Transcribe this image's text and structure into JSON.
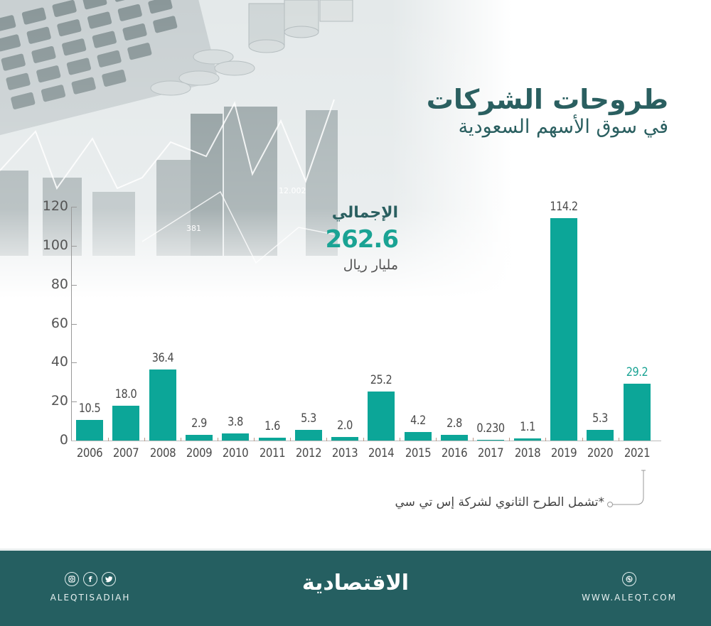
{
  "title": {
    "main": "طروحات الشركات",
    "sub": "في سوق الأسهم السعودية"
  },
  "total": {
    "label": "الإجمالي",
    "value": "262.6",
    "unit": "مليار ريال"
  },
  "footnote": "*تشمل الطرح الثانوي لشركة إس تي سي",
  "background": {
    "overlay_number_1": "12.002",
    "overlay_number_2": "381"
  },
  "colors": {
    "bar": "#0ca698",
    "highlight_label": "#1aa394",
    "title": "#2a5f60",
    "footer_bg": "#255f61"
  },
  "chart_data": {
    "type": "bar",
    "title": "طروحات الشركات في سوق الأسهم السعودية",
    "xlabel": "",
    "ylabel": "",
    "unit": "مليار ريال",
    "ylim": [
      0,
      120
    ],
    "yticks": [
      0,
      20,
      40,
      60,
      80,
      100,
      120
    ],
    "grid": false,
    "legend": null,
    "categories": [
      "2006",
      "2007",
      "2008",
      "2009",
      "2010",
      "2011",
      "2012",
      "2013",
      "2014",
      "2015",
      "2016",
      "2017",
      "2018",
      "2019",
      "2020",
      "2021"
    ],
    "values": [
      10.5,
      18.0,
      36.4,
      2.9,
      3.8,
      1.6,
      5.3,
      2.0,
      25.2,
      4.2,
      2.8,
      0.23,
      1.1,
      114.2,
      5.3,
      29.2
    ],
    "value_labels": [
      "10.5",
      "18.0",
      "36.4",
      "2.9",
      "3.8",
      "1.6",
      "5.3",
      "2.0",
      "25.2",
      "4.2",
      "2.8",
      "0.230",
      "1.1",
      "114.2",
      "5.3",
      "29.2"
    ],
    "highlighted": [
      "2021"
    ],
    "annotations": [
      {
        "text": "الإجمالي 262.6 مليار ريال"
      },
      {
        "target": "2021",
        "text": "*تشمل الطرح الثانوي لشركة إس تي سي"
      }
    ]
  },
  "footer": {
    "social_handle": "ALEQTISADIAH",
    "social_icons": [
      "instagram-icon",
      "facebook-icon",
      "twitter-icon"
    ],
    "brand": "الاقتصادية",
    "website_icon": "globe-icon",
    "website": "WWW.ALEQT.COM"
  }
}
